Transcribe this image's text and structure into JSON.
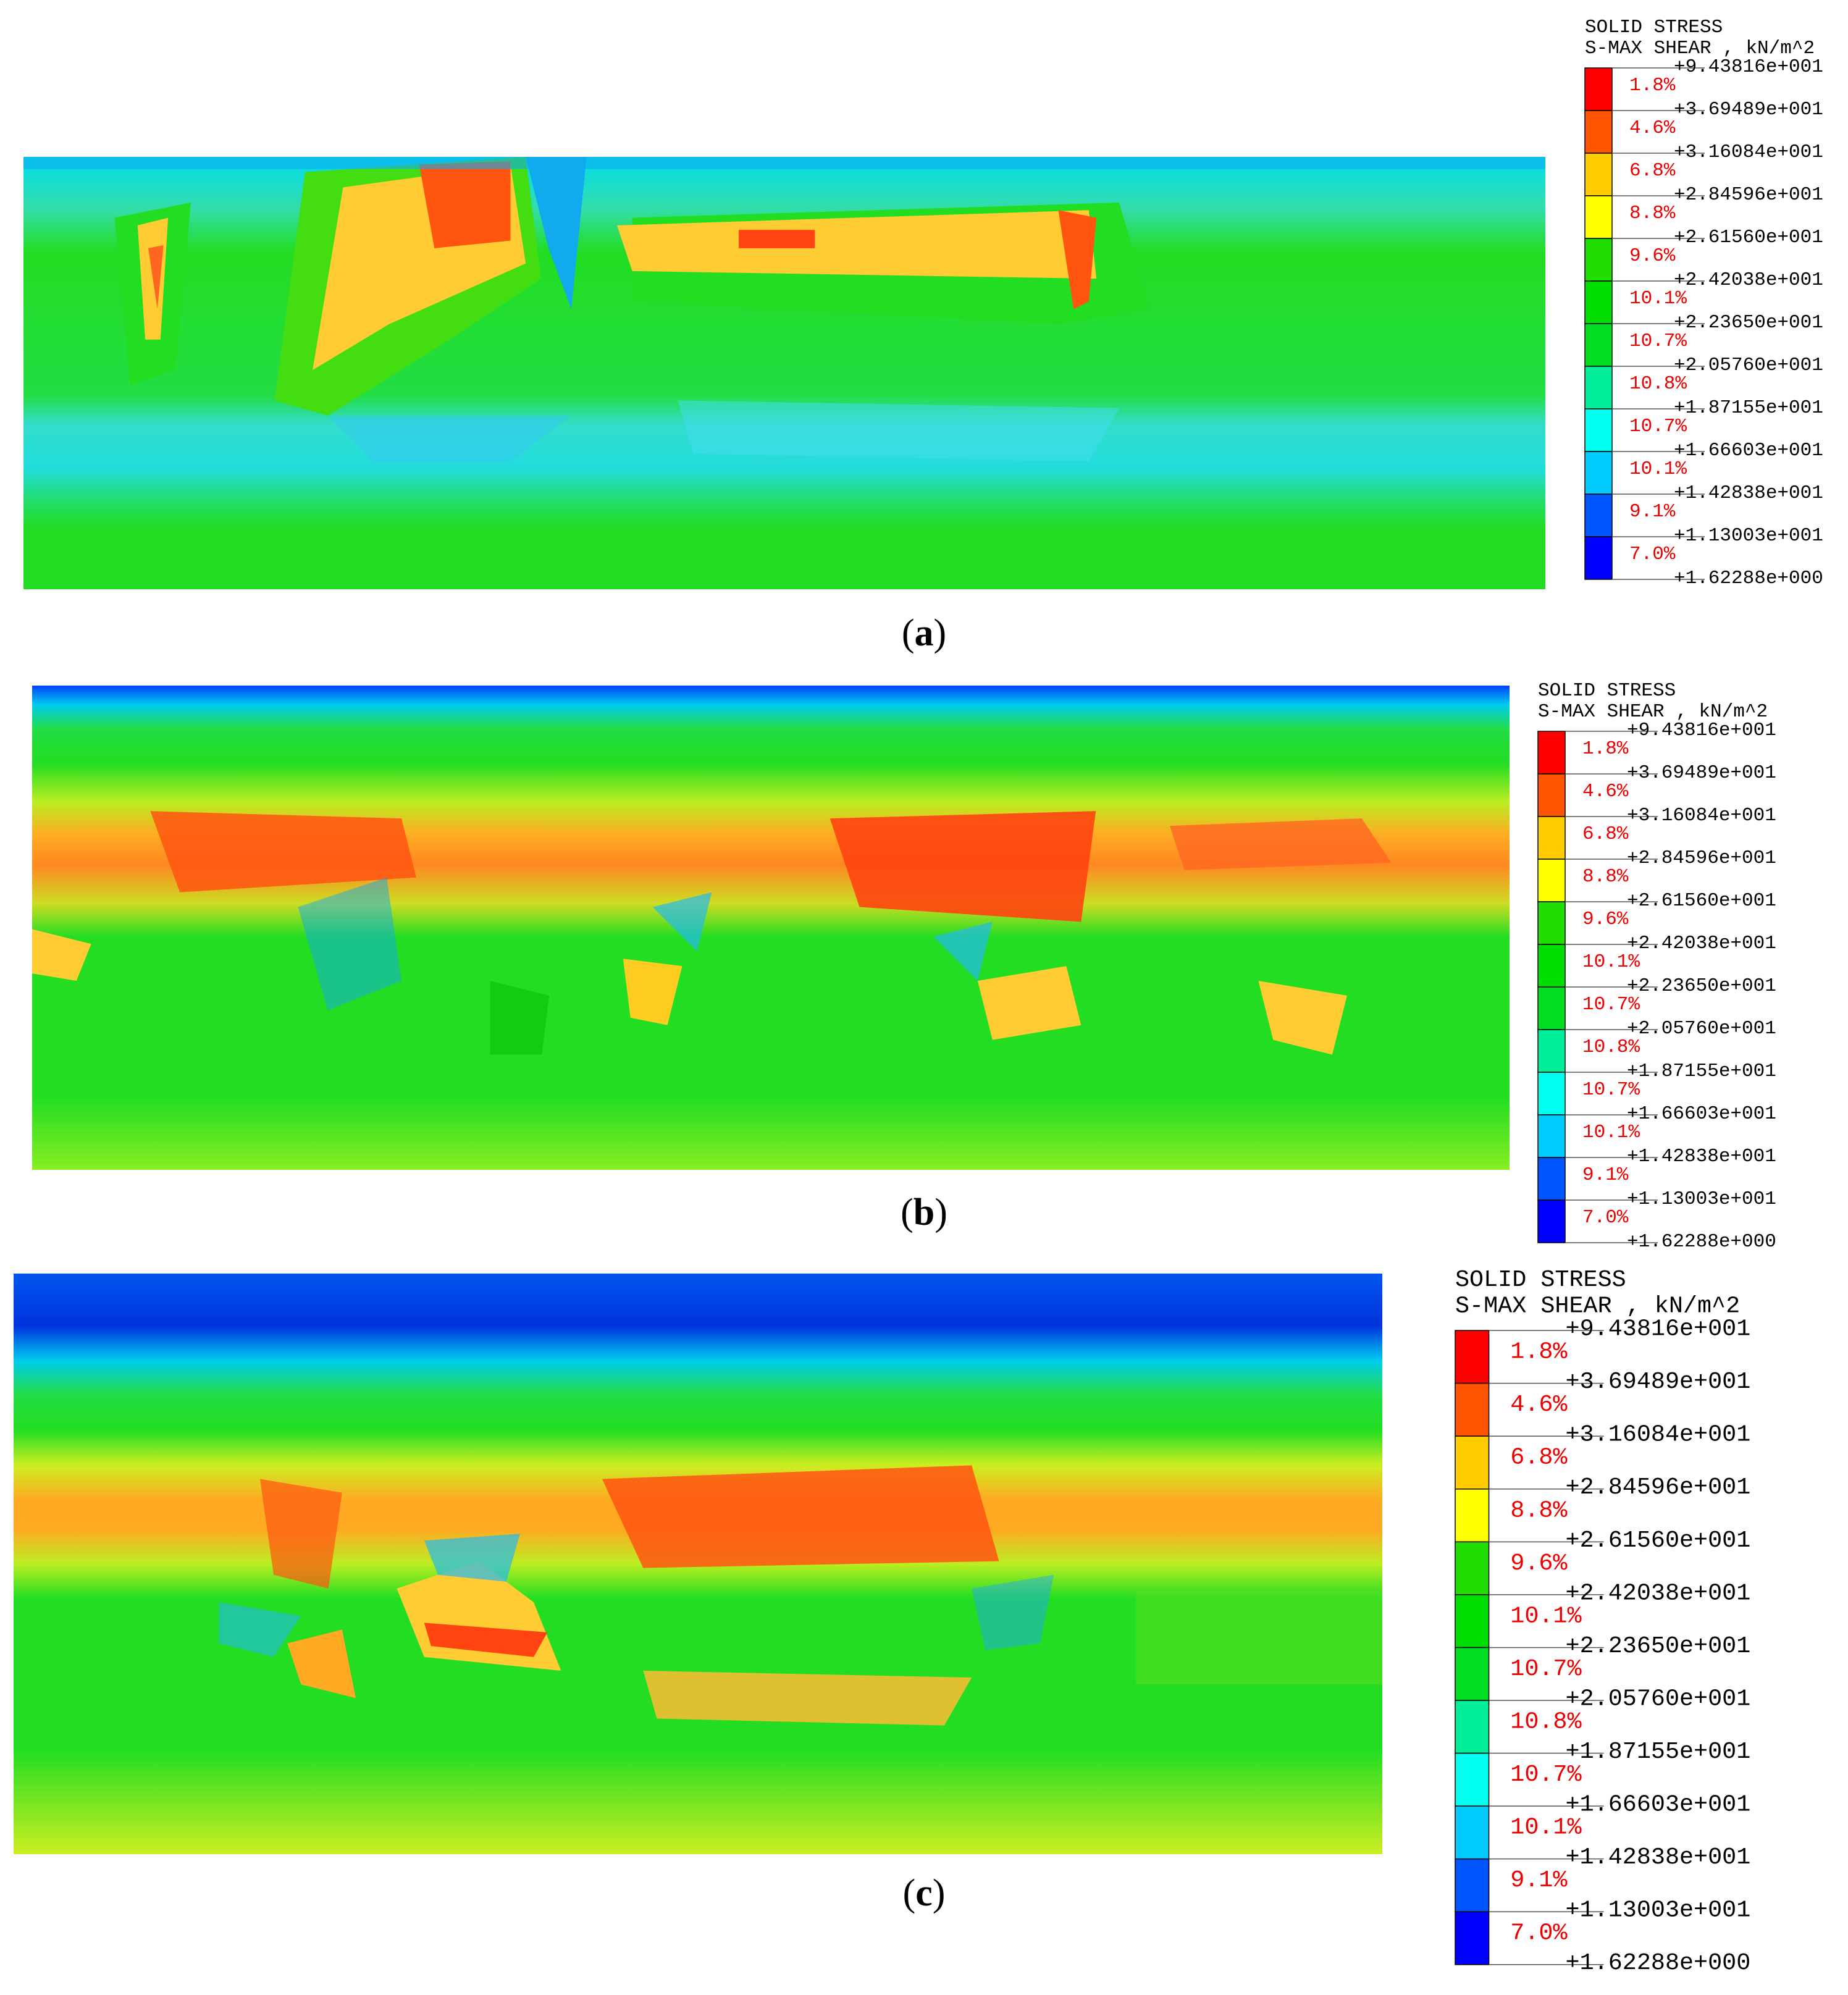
{
  "legend": {
    "title_line1": "SOLID STRESS",
    "title_line2": "S-MAX SHEAR , kN/m^2",
    "values": [
      "+9.43816e+001",
      "+3.69489e+001",
      "+3.16084e+001",
      "+2.84596e+001",
      "+2.61560e+001",
      "+2.42038e+001",
      "+2.23650e+001",
      "+2.05760e+001",
      "+1.87155e+001",
      "+1.66603e+001",
      "+1.42838e+001",
      "+1.13003e+001",
      "+1.62288e+000"
    ],
    "percents": [
      "1.8%",
      "4.6%",
      "6.8%",
      "8.8%",
      "9.6%",
      "10.1%",
      "10.7%",
      "10.8%",
      "10.7%",
      "10.1%",
      "9.1%",
      "7.0%"
    ],
    "colors": [
      "#ff0000",
      "#ff5500",
      "#ffcc00",
      "#ffff00",
      "#22dd00",
      "#00dd00",
      "#00dd22",
      "#00ee99",
      "#00ffee",
      "#00ccff",
      "#0055ff",
      "#0000ff"
    ]
  },
  "panels": [
    {
      "label": "a",
      "caption_open": "(",
      "caption_close": ")"
    },
    {
      "label": "b",
      "caption_open": "(",
      "caption_close": ")"
    },
    {
      "label": "c",
      "caption_open": "(",
      "caption_close": ")"
    }
  ]
}
